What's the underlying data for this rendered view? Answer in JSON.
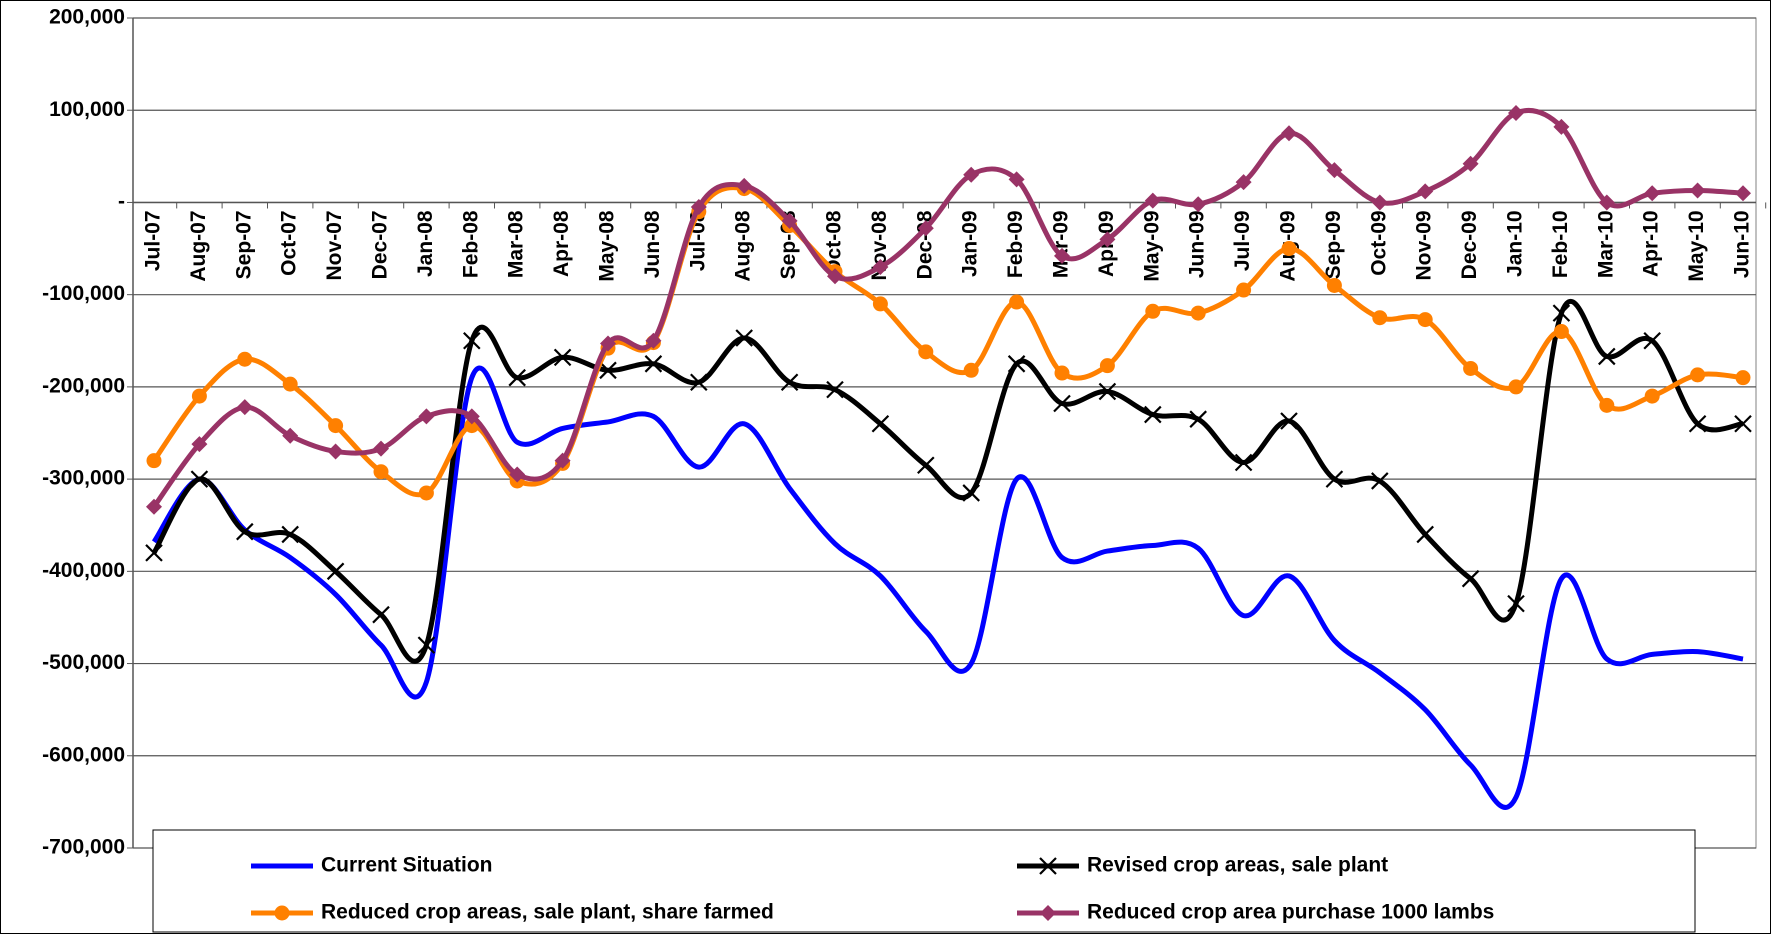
{
  "chart_data": {
    "type": "line",
    "categories": [
      "Jul-07",
      "Aug-07",
      "Sep-07",
      "Oct-07",
      "Nov-07",
      "Dec-07",
      "Jan-08",
      "Feb-08",
      "Mar-08",
      "Apr-08",
      "May-08",
      "Jun-08",
      "Jul-08",
      "Aug-08",
      "Sep-08",
      "Oct-08",
      "Nov-08",
      "Dec-08",
      "Jan-09",
      "Feb-09",
      "Mar-09",
      "Apr-09",
      "May-09",
      "Jun-09",
      "Jul-09",
      "Aug-09",
      "Sep-09",
      "Oct-09",
      "Nov-09",
      "Dec-09",
      "Jan-10",
      "Feb-10",
      "Mar-10",
      "Apr-10",
      "May-10",
      "Jun-10"
    ],
    "series": [
      {
        "name": "Current Situation",
        "color": "#0000ff",
        "marker": "none",
        "values": [
          -368000,
          -300000,
          -355000,
          -385000,
          -425000,
          -480000,
          -520000,
          -190000,
          -260000,
          -245000,
          -238000,
          -232000,
          -287000,
          -240000,
          -310000,
          -370000,
          -405000,
          -465000,
          -500000,
          -300000,
          -385000,
          -378000,
          -372000,
          -375000,
          -448000,
          -405000,
          -475000,
          -510000,
          -550000,
          -610000,
          -645000,
          -408000,
          -495000,
          -490000,
          -487000,
          -495000
        ]
      },
      {
        "name": "Revised crop areas, sale plant",
        "color": "#000000",
        "marker": "x",
        "values": [
          -380000,
          -300000,
          -357000,
          -360000,
          -400000,
          -447000,
          -480000,
          -150000,
          -190000,
          -168000,
          -182000,
          -175000,
          -195000,
          -147000,
          -195000,
          -203000,
          -240000,
          -285000,
          -315000,
          -175000,
          -218000,
          -205000,
          -230000,
          -235000,
          -282000,
          -237000,
          -300000,
          -302000,
          -360000,
          -408000,
          -435000,
          -120000,
          -167000,
          -150000,
          -240000,
          -240000
        ]
      },
      {
        "name": "Reduced crop areas, sale plant, share farmed",
        "color": "#ff8000",
        "marker": "circle",
        "values": [
          -280000,
          -210000,
          -170000,
          -197000,
          -242000,
          -292000,
          -315000,
          -242000,
          -302000,
          -283000,
          -158000,
          -152000,
          -10000,
          15000,
          -25000,
          -75000,
          -110000,
          -162000,
          -182000,
          -108000,
          -185000,
          -177000,
          -118000,
          -120000,
          -95000,
          -50000,
          -90000,
          -125000,
          -127000,
          -180000,
          -200000,
          -140000,
          -220000,
          -210000,
          -187000,
          -190000
        ]
      },
      {
        "name": "Reduced crop area purchase 1000 lambs",
        "color": "#993366",
        "marker": "diamond",
        "values": [
          -330000,
          -262000,
          -222000,
          -253000,
          -270000,
          -267000,
          -232000,
          -232000,
          -295000,
          -280000,
          -153000,
          -150000,
          -5000,
          18000,
          -20000,
          -80000,
          -70000,
          -28000,
          30000,
          25000,
          -58000,
          -40000,
          2000,
          -2000,
          22000,
          75000,
          35000,
          0,
          12000,
          42000,
          97000,
          82000,
          0,
          10000,
          13000,
          10000
        ]
      }
    ],
    "ylim": [
      -700000,
      200000
    ],
    "yticks": [
      {
        "value": -700000,
        "label": "-700,000"
      },
      {
        "value": -600000,
        "label": "-600,000"
      },
      {
        "value": -500000,
        "label": "-500,000"
      },
      {
        "value": -400000,
        "label": "-400,000"
      },
      {
        "value": -300000,
        "label": "-300,000"
      },
      {
        "value": -200000,
        "label": "-200,000"
      },
      {
        "value": -100000,
        "label": "-100,000"
      },
      {
        "value": 0,
        "label": "-"
      },
      {
        "value": 100000,
        "label": "100,000"
      },
      {
        "value": 200000,
        "label": "200,000"
      }
    ],
    "grid": true,
    "smooth": true,
    "legend": "bottom"
  }
}
